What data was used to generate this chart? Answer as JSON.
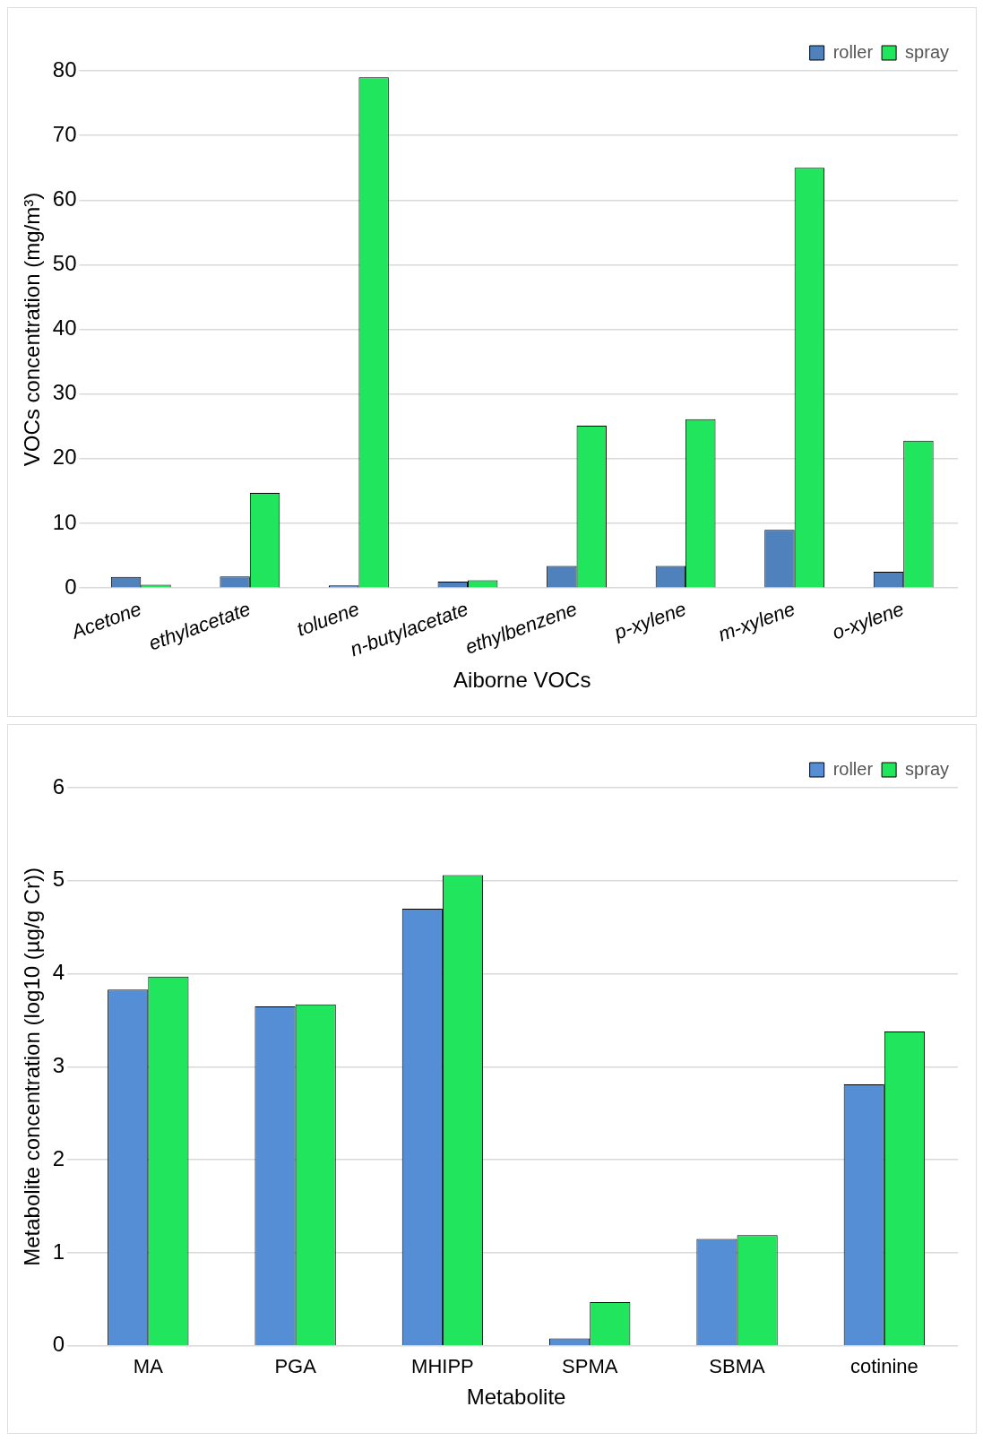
{
  "chart_data": [
    {
      "type": "bar",
      "ylabel": "VOCs concentration (mg/m³)",
      "xlabel": "Aiborne VOCs",
      "categories": [
        "Acetone",
        "ethylacetate",
        "toluene",
        "n-butylacetate",
        "ethylbenzene",
        "p-xylene",
        "m-xylene",
        "o-xylene"
      ],
      "series": [
        {
          "name": "roller",
          "color": "#4f81bd",
          "values": [
            1.7,
            1.8,
            0.4,
            1.0,
            3.4,
            3.4,
            9.0,
            2.5
          ]
        },
        {
          "name": "spray",
          "color": "#22e55e",
          "values": [
            0.5,
            14.7,
            79,
            1.2,
            25.1,
            26.1,
            65,
            22.8
          ]
        }
      ],
      "ylim": [
        0,
        80
      ],
      "yticks": [
        0,
        10,
        20,
        30,
        40,
        50,
        60,
        70,
        80
      ],
      "grid": "y",
      "legend": "top right"
    },
    {
      "type": "bar",
      "ylabel": "Metabolite concentration (log10 (µg/g Cr))",
      "xlabel": "Metabolite",
      "categories": [
        "MA",
        "PGA",
        "MHIPP",
        "SPMA",
        "SBMA",
        "cotinine"
      ],
      "series": [
        {
          "name": "roller",
          "color": "#558ed5",
          "values": [
            3.83,
            3.65,
            4.7,
            0.08,
            1.15,
            2.81
          ]
        },
        {
          "name": "spray",
          "color": "#22e55e",
          "values": [
            3.97,
            3.67,
            5.06,
            0.47,
            1.19,
            3.38
          ]
        }
      ],
      "ylim": [
        0,
        6
      ],
      "yticks": [
        0,
        1,
        2,
        3,
        4,
        5,
        6
      ],
      "grid": "y",
      "legend": "top right"
    }
  ]
}
